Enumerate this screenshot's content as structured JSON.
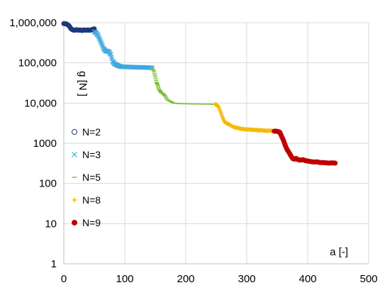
{
  "chart_data": {
    "type": "scatter",
    "title": "",
    "xlabel": "a [-]",
    "ylabel": "g [N ]",
    "xlim": [
      0,
      500
    ],
    "ylim": [
      1,
      1000000
    ],
    "yscale": "log",
    "grid": "on",
    "legend_position": "left",
    "x_ticks": [
      "0",
      "100",
      "200",
      "300",
      "400",
      "500"
    ],
    "y_ticks": [
      "1",
      "10",
      "100",
      "1000",
      "10,000",
      "100,000",
      "1,000,000"
    ],
    "series": [
      {
        "name": "N=2",
        "marker": "circle-filled",
        "color": "#1f3a7a",
        "x": [
          0,
          3,
          6,
          9,
          12,
          15,
          18,
          21,
          24,
          27,
          30,
          33,
          36,
          39,
          42,
          45,
          48,
          50
        ],
        "y": [
          950000,
          940000,
          900000,
          820000,
          700000,
          660000,
          650000,
          670000,
          650000,
          660000,
          640000,
          660000,
          650000,
          660000,
          650000,
          660000,
          690000,
          700000
        ]
      },
      {
        "name": "N=3",
        "marker": "x",
        "color": "#3fa9e0",
        "x": [
          50,
          53,
          56,
          59,
          62,
          65,
          68,
          71,
          74,
          77,
          80,
          83,
          86,
          89,
          92,
          95,
          100,
          105,
          110,
          115,
          120,
          125,
          130,
          135,
          140,
          145
        ],
        "y": [
          600000,
          560000,
          480000,
          380000,
          300000,
          230000,
          200000,
          195000,
          190000,
          160000,
          110000,
          95000,
          90000,
          85000,
          82000,
          80000,
          80000,
          79000,
          79000,
          78000,
          78000,
          77000,
          77000,
          77000,
          76000,
          75000
        ]
      },
      {
        "name": "N=5",
        "marker": "dash",
        "color": "#7dbf3a",
        "x": [
          145,
          148,
          150,
          152,
          154,
          156,
          158,
          160,
          163,
          166,
          170,
          175,
          180,
          185,
          190,
          195,
          200,
          210,
          220,
          230,
          240,
          245,
          248
        ],
        "y": [
          75000,
          60000,
          45000,
          33000,
          28000,
          22000,
          20000,
          18000,
          17000,
          15000,
          12000,
          11000,
          10000,
          9800,
          9700,
          9600,
          9600,
          9500,
          9500,
          9400,
          9400,
          9300,
          9300
        ]
      },
      {
        "name": "N=8",
        "marker": "plus",
        "color": "#f5b800",
        "x": [
          248,
          251,
          254,
          257,
          260,
          263,
          266,
          270,
          275,
          280,
          285,
          290,
          295,
          300,
          305,
          310,
          315,
          320,
          325,
          330,
          335,
          340,
          345
        ],
        "y": [
          9300,
          9000,
          8000,
          6000,
          4500,
          3500,
          3200,
          3000,
          2700,
          2500,
          2400,
          2300,
          2250,
          2200,
          2200,
          2150,
          2150,
          2100,
          2100,
          2050,
          2050,
          2050,
          2000
        ]
      },
      {
        "name": "N=9",
        "marker": "circle-filled",
        "color": "#c00000",
        "x": [
          345,
          348,
          351,
          354,
          357,
          360,
          363,
          366,
          369,
          372,
          375,
          378,
          381,
          384,
          388,
          392,
          396,
          400,
          405,
          410,
          415,
          420,
          425,
          430,
          435,
          440,
          445
        ],
        "y": [
          2000,
          2000,
          1950,
          1900,
          1500,
          1200,
          900,
          700,
          600,
          500,
          420,
          400,
          420,
          390,
          380,
          390,
          370,
          360,
          350,
          340,
          345,
          330,
          330,
          325,
          320,
          325,
          320
        ]
      }
    ]
  }
}
